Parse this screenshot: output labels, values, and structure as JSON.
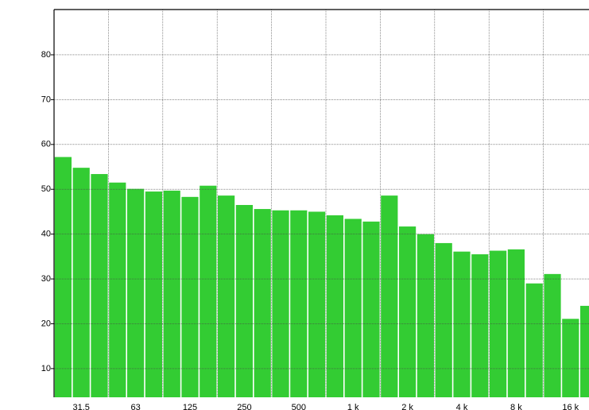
{
  "chart_data": {
    "type": "bar",
    "categories": [
      null,
      "31.5",
      null,
      null,
      "63",
      null,
      null,
      "125",
      null,
      null,
      "250",
      null,
      null,
      "500",
      null,
      null,
      "1 k",
      null,
      null,
      "2 k",
      null,
      null,
      "4 k",
      null,
      null,
      "8 k",
      null,
      null,
      "16 k",
      null
    ],
    "values": [
      57.2,
      54.8,
      53.4,
      51.5,
      50.1,
      49.5,
      49.7,
      48.3,
      50.8,
      48.6,
      46.5,
      45.6,
      45.3,
      45.3,
      45.0,
      44.2,
      43.4,
      42.8,
      48.6,
      41.7,
      40.0,
      38.0,
      36.1,
      35.5,
      36.3,
      36.6,
      29.0,
      31.1,
      21.1,
      24.0
    ],
    "color": "#33cc33",
    "ylim": [
      3.6,
      90.1
    ],
    "yticks": [
      10,
      20,
      30,
      40,
      50,
      60,
      70,
      80
    ],
    "grid": true
  }
}
